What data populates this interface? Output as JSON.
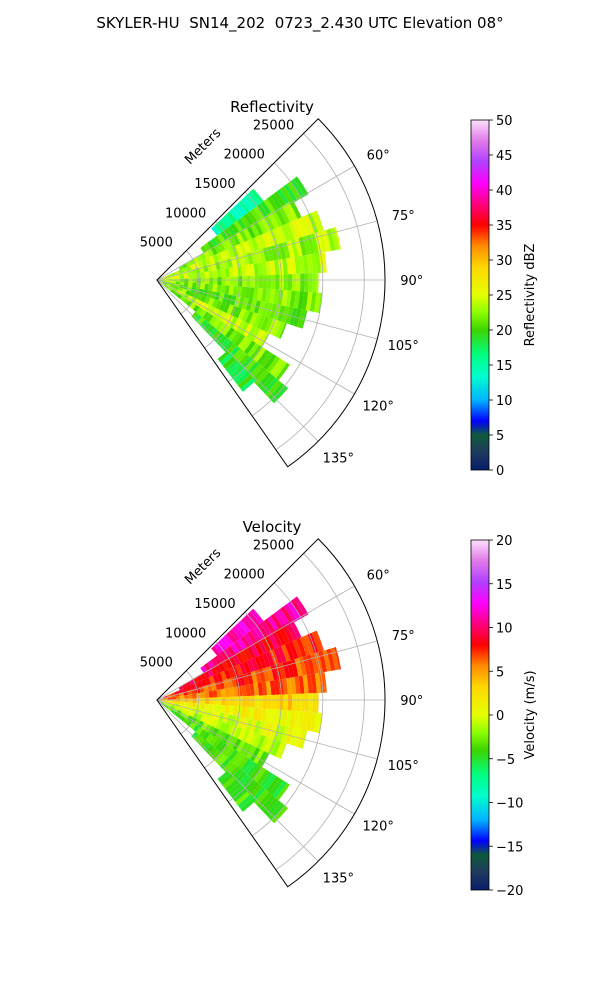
{
  "figure": {
    "title": "SKYLER-HU  SN14_202  0723_2.430 UTC Elevation 08°"
  },
  "chart_data": [
    {
      "type": "heatmap",
      "id": "reflectivity",
      "title": "Reflectivity",
      "radial_label": "Meters",
      "radial_ticks": [
        5000,
        10000,
        15000,
        20000,
        25000
      ],
      "radial_tick_labels": [
        "5000",
        "10000",
        "15000",
        "20000",
        "25000"
      ],
      "r_max_m": 27500,
      "azimuth_range_deg": [
        45,
        145
      ],
      "azimuth_ticks": [
        60,
        75,
        90,
        105,
        120,
        135
      ],
      "azimuth_tick_labels": [
        "60°",
        "75°",
        "90°",
        "105°",
        "120°",
        "135°"
      ],
      "colorbar": {
        "label": "Reflectivity dBZ",
        "range": [
          0,
          50
        ],
        "ticks": [
          "0",
          "5",
          "10",
          "15",
          "20",
          "25",
          "30",
          "35",
          "40",
          "45",
          "50"
        ],
        "stops": [
          [
            0,
            "#071e6a"
          ],
          [
            0.05,
            "#1e3a5f"
          ],
          [
            0.1,
            "#0f5a3a"
          ],
          [
            0.14,
            "#0000ff"
          ],
          [
            0.2,
            "#00b4ff"
          ],
          [
            0.27,
            "#00ffcc"
          ],
          [
            0.33,
            "#00ff7f"
          ],
          [
            0.4,
            "#3cd400"
          ],
          [
            0.45,
            "#8cff00"
          ],
          [
            0.5,
            "#e6ff00"
          ],
          [
            0.58,
            "#ffd700"
          ],
          [
            0.64,
            "#ff8c00"
          ],
          [
            0.7,
            "#ff0000"
          ],
          [
            0.76,
            "#ff0080"
          ],
          [
            0.82,
            "#ff00ff"
          ],
          [
            0.88,
            "#b040ff"
          ],
          [
            0.94,
            "#e07ae8"
          ],
          [
            1.0,
            "#ffe0ff"
          ]
        ]
      },
      "echo_cells": [
        {
          "az": 50,
          "r_min_m": 9000,
          "r_max_m": 16000,
          "value": 15
        },
        {
          "az": 57,
          "r_min_m": 6500,
          "r_max_m": 21000,
          "value": 20
        },
        {
          "az": 63,
          "r_min_m": 3000,
          "r_max_m": 19000,
          "value": 22
        },
        {
          "az": 70,
          "r_min_m": 800,
          "r_max_m": 21000,
          "value": 24
        },
        {
          "az": 77,
          "r_min_m": 300,
          "r_max_m": 22500,
          "value": 23
        },
        {
          "az": 84,
          "r_min_m": 300,
          "r_max_m": 20500,
          "value": 24
        },
        {
          "az": 91,
          "r_min_m": 300,
          "r_max_m": 19500,
          "value": 22
        },
        {
          "az": 98,
          "r_min_m": 300,
          "r_max_m": 20000,
          "value": 22
        },
        {
          "az": 105,
          "r_min_m": 300,
          "r_max_m": 18500,
          "value": 21
        },
        {
          "az": 112,
          "r_min_m": 300,
          "r_max_m": 16500,
          "value": 22
        },
        {
          "az": 119,
          "r_min_m": 300,
          "r_max_m": 15000,
          "value": 24
        },
        {
          "az": 126,
          "r_min_m": 600,
          "r_max_m": 19000,
          "value": 22
        },
        {
          "az": 133,
          "r_min_m": 6000,
          "r_max_m": 20500,
          "value": 20
        },
        {
          "az": 139,
          "r_min_m": 12000,
          "r_max_m": 17000,
          "value": 19
        }
      ]
    },
    {
      "type": "heatmap",
      "id": "velocity",
      "title": "Velocity",
      "radial_label": "Meters",
      "radial_ticks": [
        5000,
        10000,
        15000,
        20000,
        25000
      ],
      "radial_tick_labels": [
        "5000",
        "10000",
        "15000",
        "20000",
        "25000"
      ],
      "r_max_m": 27500,
      "azimuth_range_deg": [
        45,
        145
      ],
      "azimuth_ticks": [
        60,
        75,
        90,
        105,
        120,
        135
      ],
      "azimuth_tick_labels": [
        "60°",
        "75°",
        "90°",
        "105°",
        "120°",
        "135°"
      ],
      "colorbar": {
        "label": "Velocity (m/s)",
        "range": [
          -20,
          20
        ],
        "ticks": [
          "−20",
          "−15",
          "−10",
          "−5",
          "0",
          "5",
          "10",
          "15",
          "20"
        ],
        "stops": [
          [
            0,
            "#071e6a"
          ],
          [
            0.05,
            "#1e3a5f"
          ],
          [
            0.1,
            "#0f5a3a"
          ],
          [
            0.14,
            "#0000ff"
          ],
          [
            0.2,
            "#00b4ff"
          ],
          [
            0.27,
            "#00ffcc"
          ],
          [
            0.33,
            "#00ff7f"
          ],
          [
            0.4,
            "#3cd400"
          ],
          [
            0.45,
            "#8cff00"
          ],
          [
            0.5,
            "#e6ff00"
          ],
          [
            0.58,
            "#ffd700"
          ],
          [
            0.64,
            "#ff8c00"
          ],
          [
            0.7,
            "#ff0000"
          ],
          [
            0.76,
            "#ff0080"
          ],
          [
            0.82,
            "#ff00ff"
          ],
          [
            0.88,
            "#b040ff"
          ],
          [
            0.94,
            "#e07ae8"
          ],
          [
            1.0,
            "#ffe0ff"
          ]
        ]
      },
      "echo_cells": [
        {
          "az": 50,
          "r_min_m": 9000,
          "r_max_m": 16000,
          "value": 12
        },
        {
          "az": 57,
          "r_min_m": 6500,
          "r_max_m": 21000,
          "value": 11
        },
        {
          "az": 63,
          "r_min_m": 3000,
          "r_max_m": 19000,
          "value": 9
        },
        {
          "az": 70,
          "r_min_m": 800,
          "r_max_m": 21000,
          "value": 8
        },
        {
          "az": 77,
          "r_min_m": 300,
          "r_max_m": 22500,
          "value": 7
        },
        {
          "az": 84,
          "r_min_m": 300,
          "r_max_m": 20500,
          "value": 6
        },
        {
          "az": 91,
          "r_min_m": 300,
          "r_max_m": 19500,
          "value": 3
        },
        {
          "az": 98,
          "r_min_m": 300,
          "r_max_m": 20000,
          "value": 1
        },
        {
          "az": 105,
          "r_min_m": 300,
          "r_max_m": 18500,
          "value": 0
        },
        {
          "az": 112,
          "r_min_m": 300,
          "r_max_m": 16500,
          "value": -1
        },
        {
          "az": 119,
          "r_min_m": 300,
          "r_max_m": 15000,
          "value": -3
        },
        {
          "az": 126,
          "r_min_m": 600,
          "r_max_m": 19000,
          "value": -4
        },
        {
          "az": 133,
          "r_min_m": 6000,
          "r_max_m": 20500,
          "value": -4
        },
        {
          "az": 139,
          "r_min_m": 12000,
          "r_max_m": 17000,
          "value": -4
        }
      ]
    }
  ]
}
